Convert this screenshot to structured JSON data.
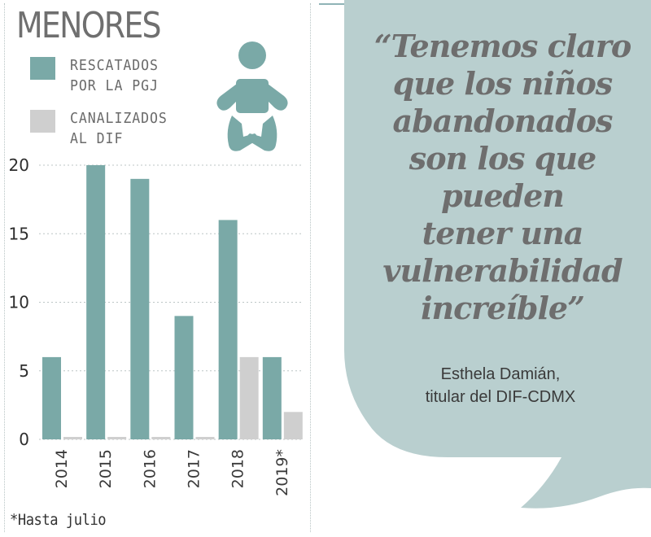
{
  "chart_data": {
    "type": "bar",
    "title": "MENORES",
    "categories": [
      "2014",
      "2015",
      "2016",
      "2017",
      "2018",
      "2019*"
    ],
    "series": [
      {
        "name": "RESCATADOS\nPOR LA PGJ",
        "color": "#7aa9a7",
        "values": [
          6,
          20,
          19,
          9,
          16,
          6
        ]
      },
      {
        "name": "CANALIZADOS\nAL DIF",
        "color": "#cfcfcf",
        "values": [
          0,
          0,
          0,
          0,
          6,
          2
        ]
      }
    ],
    "yticks": [
      0,
      5,
      10,
      15,
      20
    ],
    "ylim": [
      0,
      20
    ],
    "footnote": "*Hasta julio"
  },
  "quote": {
    "text": "“Tenemos claro\nque los niños\nabandonados\nson los que\npueden\ntener una\nvulnerabilidad\nincreíble”",
    "attribution": "Esthela Damián,\ntitular del DIF-CDMX"
  },
  "colors": {
    "bubble": "#b9cfcf",
    "bar_primary": "#7aa9a7",
    "bar_secondary": "#cfcfcf",
    "icon": "#7aa9a7"
  },
  "icons": {
    "baby": "baby-icon"
  }
}
